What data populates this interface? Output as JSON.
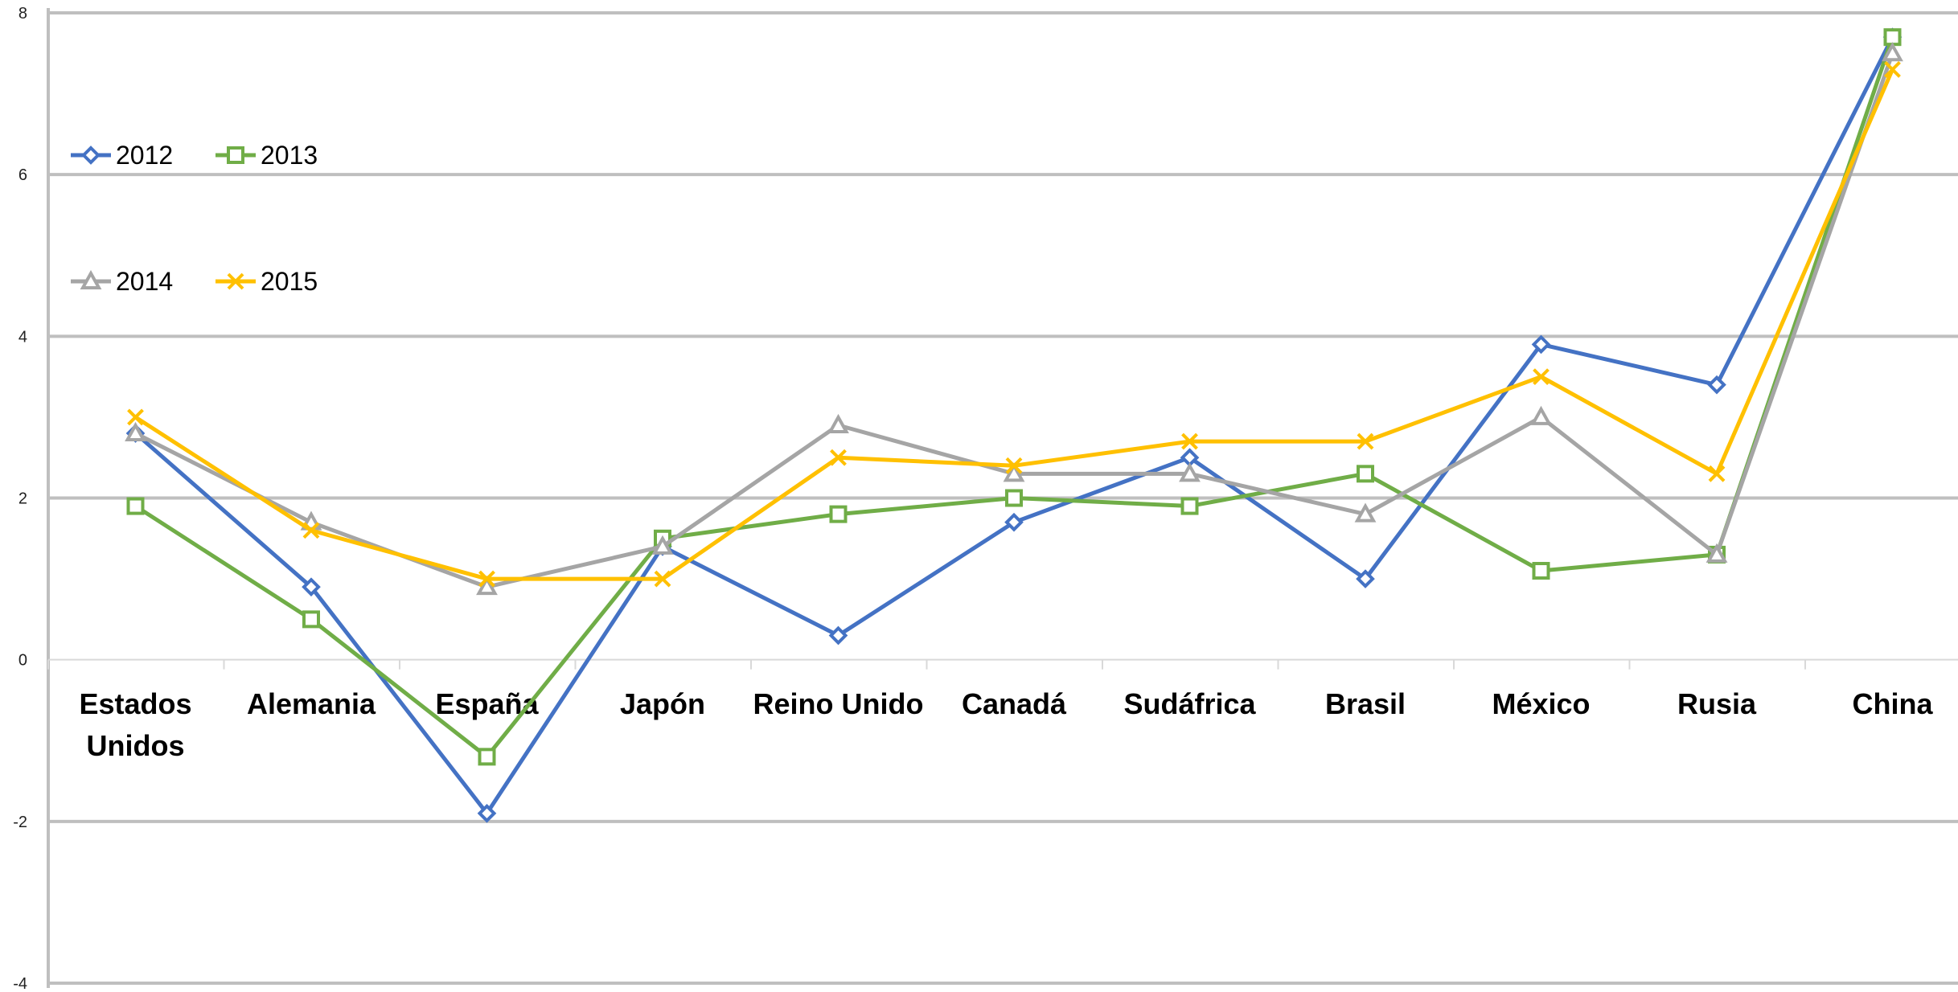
{
  "chart_data": {
    "type": "line",
    "title": "",
    "xlabel": "",
    "ylabel": "",
    "ylim": [
      -4,
      8
    ],
    "yticks": [
      -4,
      -2,
      0,
      2,
      4,
      6,
      8
    ],
    "grid": true,
    "legend_position": "top-left",
    "categories": [
      "Estados Unidos",
      "Alemania",
      "España",
      "Japón",
      "Reino Unido",
      "Canadá",
      "Sudáfrica",
      "Brasil",
      "México",
      "Rusia",
      "China"
    ],
    "series": [
      {
        "name": "2012",
        "color": "#4472C4",
        "marker": "diamond",
        "values": [
          2.8,
          0.9,
          -1.9,
          1.4,
          0.3,
          1.7,
          2.5,
          1.0,
          3.9,
          3.4,
          7.7
        ]
      },
      {
        "name": "2013",
        "color": "#70AD47",
        "marker": "square",
        "values": [
          1.9,
          0.5,
          -1.2,
          1.5,
          1.8,
          2.0,
          1.9,
          2.3,
          1.1,
          1.3,
          7.7
        ]
      },
      {
        "name": "2014",
        "color": "#A5A5A5",
        "marker": "triangle",
        "values": [
          2.8,
          1.7,
          0.9,
          1.4,
          2.9,
          2.3,
          2.3,
          1.8,
          3.0,
          1.3,
          7.5
        ]
      },
      {
        "name": "2015",
        "color": "#FFC000",
        "marker": "x",
        "values": [
          3.0,
          1.6,
          1.0,
          1.0,
          2.5,
          2.4,
          2.7,
          2.7,
          3.5,
          2.3,
          7.3
        ]
      }
    ]
  }
}
